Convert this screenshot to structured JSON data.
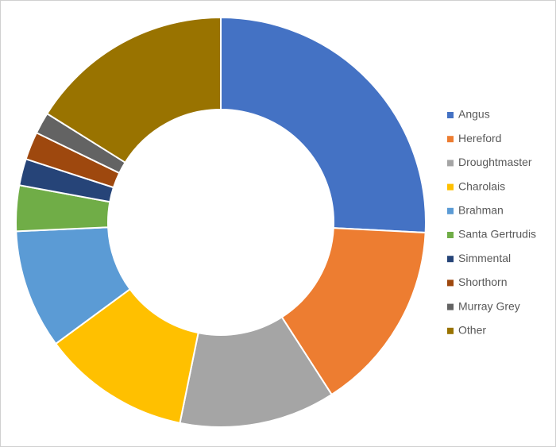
{
  "chart_data": {
    "type": "donut",
    "categories": [
      "Angus",
      "Hereford",
      "Droughtmaster",
      "Charolais",
      "Brahman",
      "Santa Gertrudis",
      "Simmental",
      "Shorthorn",
      "Murray Grey",
      "Other"
    ],
    "values": [
      25.8,
      15.1,
      12.3,
      11.7,
      9.4,
      3.6,
      2.1,
      2.2,
      1.7,
      16.1
    ],
    "colors": [
      "#4472c4",
      "#ed7d31",
      "#a5a5a5",
      "#ffc000",
      "#5b9bd5",
      "#70ad47",
      "#264478",
      "#9e480e",
      "#636363",
      "#997300"
    ],
    "legend": "right"
  }
}
